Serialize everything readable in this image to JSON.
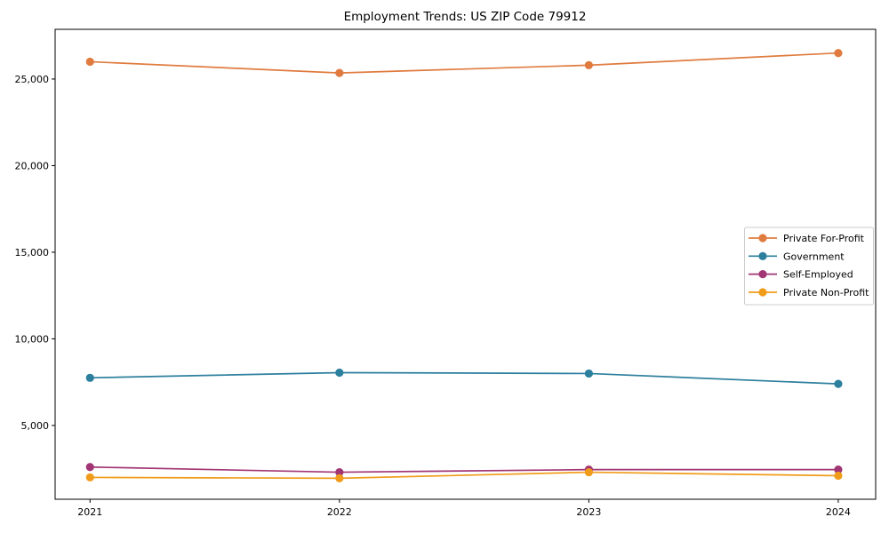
{
  "chart_data": {
    "type": "line",
    "title": "Employment Trends: US ZIP Code 79912",
    "x": [
      2021,
      2022,
      2023,
      2024
    ],
    "xticklabels": [
      "2021",
      "2022",
      "2023",
      "2024"
    ],
    "xlim": [
      2020.86,
      2024.15
    ],
    "ylim": [
      740,
      27870
    ],
    "yticks": [
      5000,
      10000,
      15000,
      20000,
      25000
    ],
    "yticklabels": [
      "5,000",
      "10,000",
      "15,000",
      "20,000",
      "25,000"
    ],
    "xlabel": "",
    "ylabel": "",
    "grid": false,
    "legend_position": "center right",
    "background_color": "#ffffff",
    "axis_color": "#000000",
    "legend_border_color": "#cccccc",
    "series": [
      {
        "name": "Private For-Profit",
        "color": "#e07b3f",
        "values": [
          26000,
          25350,
          25800,
          26500
        ]
      },
      {
        "name": "Government",
        "color": "#2d7f9e",
        "values": [
          7750,
          8050,
          8000,
          7400
        ]
      },
      {
        "name": "Self-Employed",
        "color": "#a23675",
        "values": [
          2600,
          2300,
          2450,
          2450
        ]
      },
      {
        "name": "Private Non-Profit",
        "color": "#f09c1a",
        "values": [
          2000,
          1950,
          2300,
          2100
        ]
      }
    ]
  }
}
